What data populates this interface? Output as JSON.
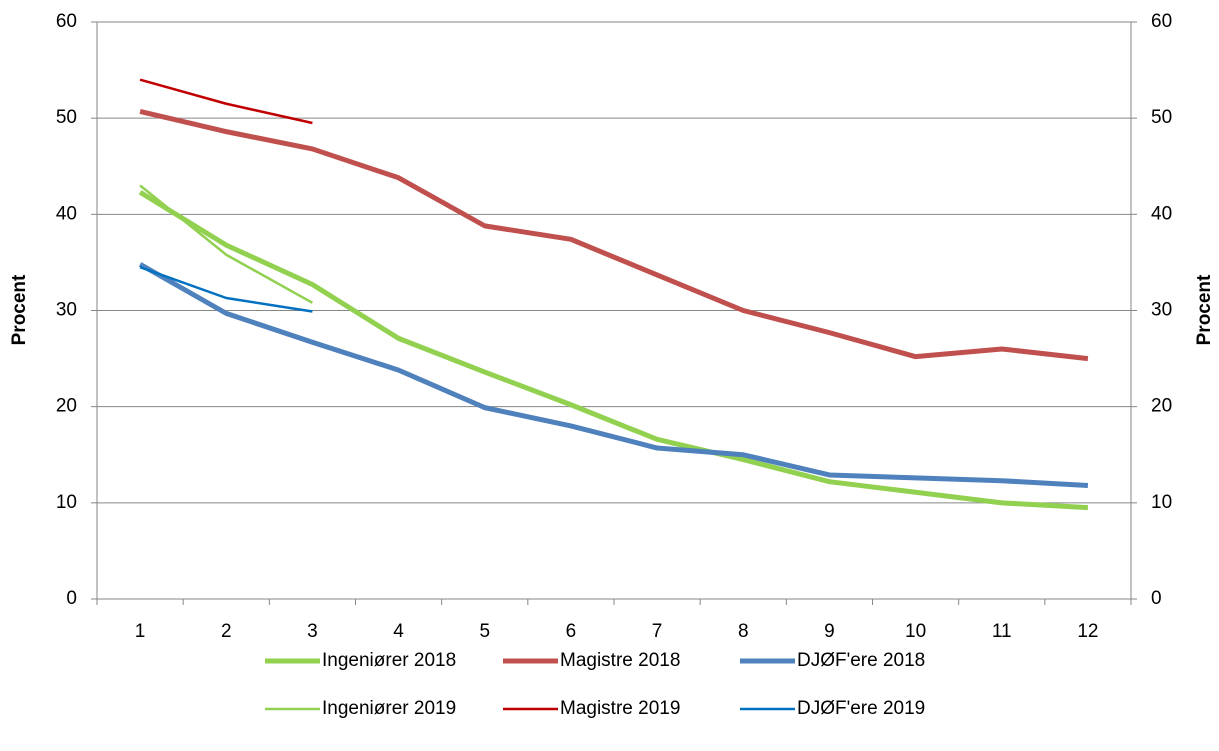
{
  "chart_data": {
    "type": "line",
    "categories": [
      "1",
      "2",
      "3",
      "4",
      "5",
      "6",
      "7",
      "8",
      "9",
      "10",
      "11",
      "12"
    ],
    "series": [
      {
        "name": "Ingeniører 2018",
        "color": "#92d050",
        "width": 5,
        "values": [
          42.3,
          36.8,
          32.7,
          27.1,
          23.6,
          20.2,
          16.6,
          14.5,
          12.2,
          11.1,
          10.0,
          9.5
        ]
      },
      {
        "name": "Magistre 2018",
        "color": "#c0504d",
        "width": 5,
        "values": [
          50.7,
          48.6,
          46.8,
          43.8,
          38.8,
          37.4,
          33.7,
          30.0,
          27.7,
          25.2,
          26.0,
          25.0
        ]
      },
      {
        "name": "DJØF'ere 2018",
        "color": "#4f81bd",
        "width": 5,
        "values": [
          34.8,
          29.7,
          26.7,
          23.8,
          19.9,
          18.0,
          15.7,
          15.0,
          12.9,
          12.6,
          12.3,
          11.8
        ]
      },
      {
        "name": "Ingeniører 2019",
        "color": "#92d050",
        "width": 2.5,
        "values": [
          43.0,
          35.8,
          30.8,
          null,
          null,
          null,
          null,
          null,
          null,
          null,
          null,
          null
        ]
      },
      {
        "name": "Magistre 2019",
        "color": "#c00000",
        "width": 2.5,
        "values": [
          54.0,
          51.5,
          49.5,
          null,
          null,
          null,
          null,
          null,
          null,
          null,
          null,
          null
        ]
      },
      {
        "name": "DJØF'ere 2019",
        "color": "#0070c0",
        "width": 2.5,
        "values": [
          34.5,
          31.3,
          29.9,
          null,
          null,
          null,
          null,
          null,
          null,
          null,
          null,
          null
        ]
      }
    ],
    "ylabel": "Procent",
    "y2label": "Procent",
    "ylim": [
      0,
      60
    ],
    "yticks": [
      0,
      10,
      20,
      30,
      40,
      50,
      60
    ],
    "y2lim": [
      0,
      60
    ],
    "y2ticks": [
      0,
      10,
      20,
      30,
      40,
      50,
      60
    ],
    "grid": true,
    "legend": "bottom"
  }
}
